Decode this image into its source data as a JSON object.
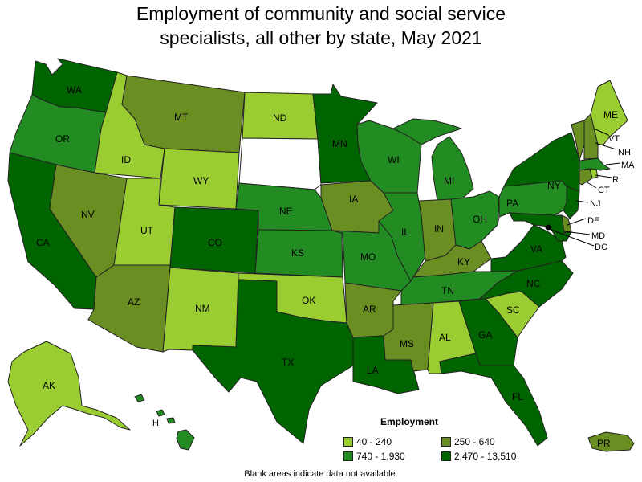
{
  "title_line1": "Employment of community and social service",
  "title_line2": "specialists, all other by state, May 2021",
  "legend": {
    "title": "Employment",
    "items": [
      {
        "label": "40 - 240",
        "color": "#9acd32"
      },
      {
        "label": "250 - 640",
        "color": "#6b8e23"
      },
      {
        "label": "740 - 1,930",
        "color": "#228b22"
      },
      {
        "label": "2,470 - 13,510",
        "color": "#006400"
      }
    ]
  },
  "footnote": "Blank areas indicate data not available.",
  "colors": {
    "c1": "#9acd32",
    "c2": "#6b8e23",
    "c3": "#228b22",
    "c4": "#006400",
    "blank": "#ffffff"
  },
  "states": {
    "WA": "c4",
    "OR": "c3",
    "CA": "c4",
    "ID": "c1",
    "NV": "c2",
    "MT": "c2",
    "WY": "c1",
    "UT": "c1",
    "AZ": "c2",
    "CO": "c4",
    "NM": "c1",
    "ND": "c1",
    "SD": "blank",
    "NE": "c3",
    "KS": "c3",
    "OK": "c1",
    "TX": "c4",
    "MN": "c4",
    "IA": "c2",
    "MO": "c3",
    "AR": "c2",
    "LA": "c4",
    "WI": "c3",
    "IL": "c3",
    "MI": "c3",
    "IN": "c2",
    "OH": "c3",
    "KY": "c2",
    "TN": "c3",
    "MS": "c2",
    "AL": "c1",
    "GA": "c4",
    "FL": "c4",
    "SC": "c1",
    "NC": "c4",
    "VA": "c4",
    "WV": "blank",
    "PA": "c3",
    "NY": "c4",
    "VT": "c2",
    "NH": "c2",
    "ME": "c1",
    "MA": "c3",
    "RI": "c1",
    "CT": "c2",
    "NJ": "c4",
    "DE": "c2",
    "MD": "c4",
    "DC": "c4",
    "AK": "c1",
    "HI": "c3",
    "PR": "c2"
  },
  "labels": {
    "WA": "WA",
    "OR": "OR",
    "CA": "CA",
    "ID": "ID",
    "NV": "NV",
    "MT": "MT",
    "WY": "WY",
    "UT": "UT",
    "AZ": "AZ",
    "CO": "CO",
    "NM": "NM",
    "ND": "ND",
    "NE": "NE",
    "KS": "KS",
    "OK": "OK",
    "TX": "TX",
    "MN": "MN",
    "IA": "IA",
    "MO": "MO",
    "AR": "AR",
    "LA": "LA",
    "WI": "WI",
    "IL": "IL",
    "MI": "MI",
    "IN": "IN",
    "OH": "OH",
    "KY": "KY",
    "TN": "TN",
    "MS": "MS",
    "AL": "AL",
    "GA": "GA",
    "FL": "FL",
    "SC": "SC",
    "NC": "NC",
    "VA": "VA",
    "PA": "PA",
    "NY": "NY",
    "ME": "ME",
    "VT": "VT",
    "NH": "NH",
    "MA": "MA",
    "RI": "RI",
    "CT": "CT",
    "NJ": "NJ",
    "DE": "DE",
    "MD": "MD",
    "DC": "DC",
    "AK": "AK",
    "HI": "HI",
    "PR": "PR"
  }
}
